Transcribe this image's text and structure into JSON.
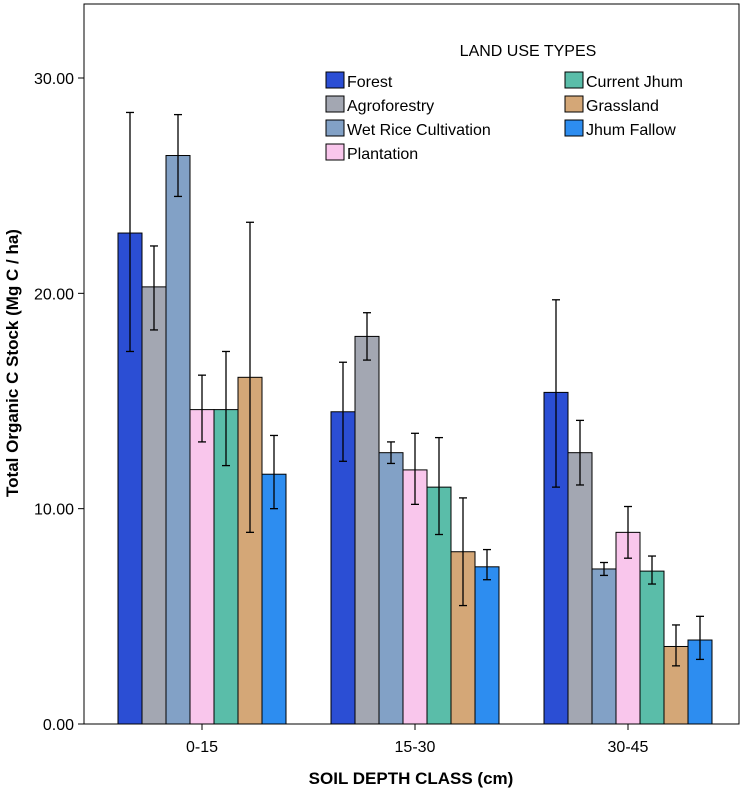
{
  "chart_data": {
    "type": "bar",
    "title": "",
    "xlabel": "SOIL DEPTH CLASS (cm)",
    "ylabel": "Total Organic C Stock (Mg C / ha)",
    "ylim": [
      0,
      33
    ],
    "yticks": [
      0,
      10,
      20,
      30
    ],
    "ytick_labels": [
      "0.00",
      "10.00",
      "20.00",
      "30.00"
    ],
    "categories": [
      "0-15",
      "15-30",
      "30-45"
    ],
    "legend_title": "LAND USE TYPES",
    "legend_position": "top-right",
    "error_bars": true,
    "series": [
      {
        "name": "Forest",
        "color": "#2b4ed4",
        "values": [
          22.8,
          14.5,
          15.4
        ],
        "err_low": [
          17.3,
          12.2,
          11.0
        ],
        "err_high": [
          28.4,
          16.8,
          19.7
        ]
      },
      {
        "name": "Agroforestry",
        "color": "#a3a7b2",
        "values": [
          20.3,
          18.0,
          12.6
        ],
        "err_low": [
          18.3,
          16.9,
          11.1
        ],
        "err_high": [
          22.2,
          19.1,
          14.1
        ]
      },
      {
        "name": "Wet Rice Cultivation",
        "color": "#82a1c6",
        "values": [
          26.4,
          12.6,
          7.2
        ],
        "err_low": [
          24.5,
          12.1,
          6.9
        ],
        "err_high": [
          28.3,
          13.1,
          7.5
        ]
      },
      {
        "name": "Plantation",
        "color": "#f9c6ec",
        "values": [
          14.6,
          11.8,
          8.9
        ],
        "err_low": [
          13.1,
          10.2,
          7.7
        ],
        "err_high": [
          16.2,
          13.5,
          10.1
        ]
      },
      {
        "name": "Current Jhum",
        "color": "#5abda9",
        "values": [
          14.6,
          11.0,
          7.1
        ],
        "err_low": [
          12.0,
          8.8,
          6.5
        ],
        "err_high": [
          17.3,
          13.3,
          7.8
        ]
      },
      {
        "name": "Grassland",
        "color": "#d4a777",
        "values": [
          16.1,
          8.0,
          3.6
        ],
        "err_low": [
          8.9,
          5.5,
          2.7
        ],
        "err_high": [
          23.3,
          10.5,
          4.6
        ]
      },
      {
        "name": "Jhum Fallow",
        "color": "#2d8df0",
        "values": [
          11.6,
          7.3,
          3.9
        ],
        "err_low": [
          10.0,
          6.7,
          3.0
        ],
        "err_high": [
          13.4,
          8.1,
          5.0
        ]
      }
    ]
  }
}
